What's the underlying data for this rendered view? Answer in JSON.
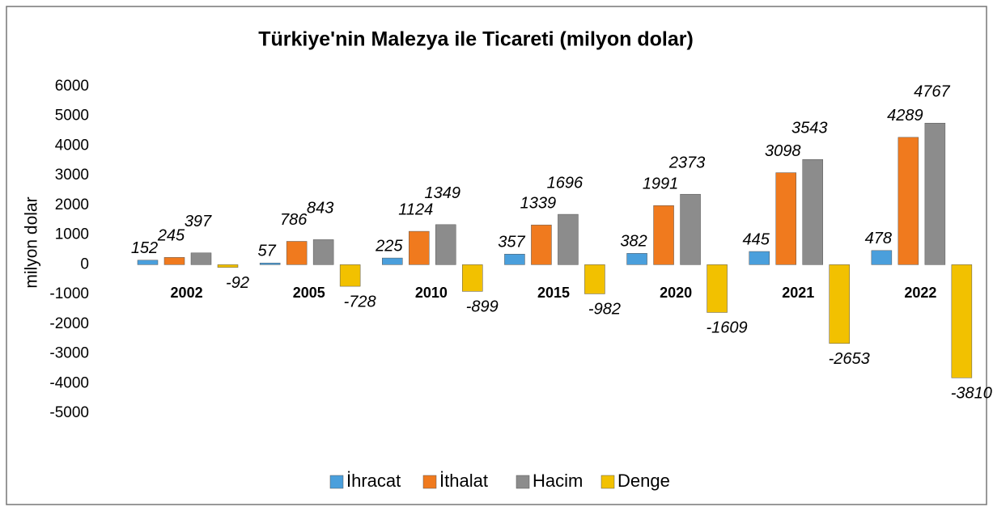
{
  "chart_data": {
    "type": "bar",
    "title": "Türkiye'nin Malezya ile Ticareti (milyon dolar)",
    "y_label": "milyon dolar",
    "categories": [
      "2002",
      "2005",
      "2010",
      "2015",
      "2020",
      "2021",
      "2022"
    ],
    "series": [
      {
        "name": "İhracat",
        "color": "#4a9fdc",
        "values": [
          152,
          57,
          225,
          357,
          382,
          445,
          478
        ]
      },
      {
        "name": "İthalat",
        "color": "#f07a1e",
        "values": [
          245,
          786,
          1124,
          1339,
          1991,
          3098,
          4289
        ]
      },
      {
        "name": "Hacim",
        "color": "#8c8c8c",
        "values": [
          397,
          843,
          1349,
          1696,
          2373,
          3543,
          4767
        ]
      },
      {
        "name": "Denge",
        "color": "#f2c100",
        "values": [
          -92,
          -728,
          -899,
          -982,
          -1609,
          -2653,
          -3810
        ]
      }
    ],
    "ylim": [
      -5000,
      6000
    ],
    "yticks": [
      -5000,
      -4000,
      -3000,
      -2000,
      -1000,
      0,
      1000,
      2000,
      3000,
      4000,
      5000,
      6000
    ],
    "legend": "bottom"
  }
}
